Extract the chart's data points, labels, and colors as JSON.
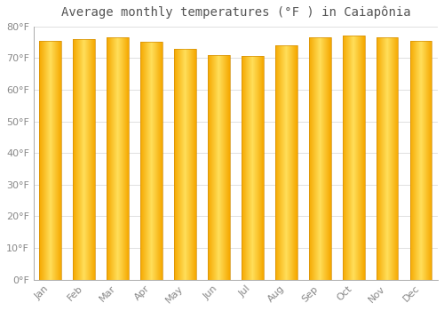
{
  "title": "Average monthly temperatures (°F ) in Caiapônia",
  "months": [
    "Jan",
    "Feb",
    "Mar",
    "Apr",
    "May",
    "Jun",
    "Jul",
    "Aug",
    "Sep",
    "Oct",
    "Nov",
    "Dec"
  ],
  "values": [
    75.5,
    76.0,
    76.5,
    75.0,
    73.0,
    71.0,
    70.5,
    74.0,
    76.5,
    77.0,
    76.5,
    75.5
  ],
  "bar_color_center": "#FFE066",
  "bar_color_edge": "#F5A800",
  "background_color": "#FFFFFF",
  "grid_color": "#E0E0E0",
  "ylim": [
    0,
    80
  ],
  "yticks": [
    0,
    10,
    20,
    30,
    40,
    50,
    60,
    70,
    80
  ],
  "ytick_labels": [
    "0°F",
    "10°F",
    "20°F",
    "30°F",
    "40°F",
    "50°F",
    "60°F",
    "70°F",
    "80°F"
  ],
  "title_fontsize": 10,
  "tick_fontsize": 8,
  "bar_width": 0.65
}
